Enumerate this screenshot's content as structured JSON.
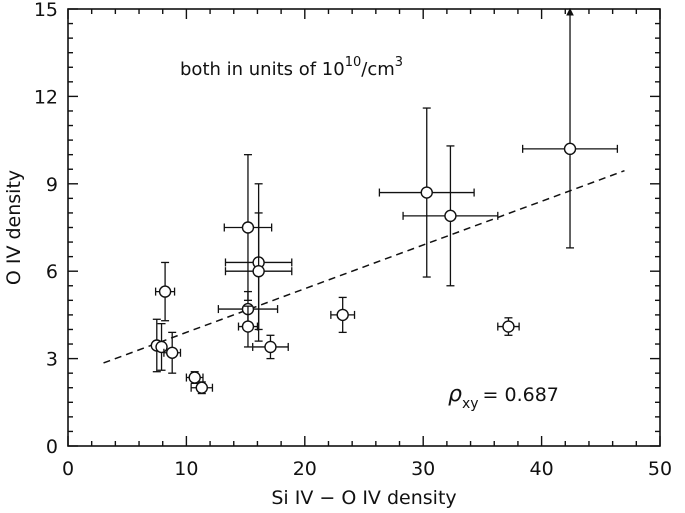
{
  "chart_data": {
    "type": "scatter",
    "xlabel": "Si IV − O IV density",
    "ylabel": "O IV density",
    "xlim": [
      0,
      50
    ],
    "ylim": [
      0,
      15
    ],
    "xticks": [
      0,
      10,
      20,
      30,
      40,
      50
    ],
    "yticks": [
      0,
      3,
      6,
      9,
      12,
      15
    ],
    "xtick_labels": [
      "0",
      "10",
      "20",
      "30",
      "40",
      "50"
    ],
    "ytick_labels": [
      "0",
      "3",
      "6",
      "9",
      "12",
      "15"
    ],
    "grid": false,
    "annotation": {
      "prefix": "both in units of 10",
      "exp1": "10",
      "mid": "/cm",
      "exp2": "3"
    },
    "correlation": {
      "symbol": "ρ",
      "subscript": "xy",
      "text": "= 0.687",
      "value": 0.687
    },
    "fit_line": {
      "x": [
        3,
        47
      ],
      "y": [
        2.85,
        9.45
      ],
      "style": "dashed"
    },
    "points": [
      {
        "x": 7.5,
        "y": 3.45,
        "xerr": 0.3,
        "yerr": 0.9
      },
      {
        "x": 7.9,
        "y": 3.4,
        "xerr": 0.3,
        "yerr": 0.8
      },
      {
        "x": 8.2,
        "y": 5.3,
        "xerr": 0.8,
        "yerr": 1.0
      },
      {
        "x": 8.8,
        "y": 3.2,
        "xerr": 0.7,
        "yerr": 0.7
      },
      {
        "x": 10.7,
        "y": 2.35,
        "xerr": 0.7,
        "yerr": 0.2
      },
      {
        "x": 11.3,
        "y": 2.0,
        "xerr": 0.9,
        "yerr": 0.2
      },
      {
        "x": 15.2,
        "y": 7.5,
        "xerr": 2.0,
        "yerr": 2.5
      },
      {
        "x": 15.2,
        "y": 4.7,
        "xerr": 2.5,
        "yerr": 0.6
      },
      {
        "x": 15.2,
        "y": 4.1,
        "xerr": 0.8,
        "yerr": 0.7
      },
      {
        "x": 16.1,
        "y": 6.3,
        "xerr": 2.8,
        "yerr": 2.7
      },
      {
        "x": 16.1,
        "y": 6.0,
        "xerr": 2.8,
        "yerr": 2.0
      },
      {
        "x": 17.1,
        "y": 3.4,
        "xerr": 1.5,
        "yerr": 0.4
      },
      {
        "x": 23.2,
        "y": 4.5,
        "xerr": 1.0,
        "yerr": 0.6
      },
      {
        "x": 30.3,
        "y": 8.7,
        "xerr": 4.0,
        "yerr": 2.9
      },
      {
        "x": 32.3,
        "y": 7.9,
        "xerr": 4.0,
        "yerr": 2.4
      },
      {
        "x": 37.2,
        "y": 4.1,
        "xerr": 0.9,
        "yerr": 0.3
      },
      {
        "x": 42.4,
        "y": 10.2,
        "xerr": 4.0,
        "yerr_low": 3.4,
        "yerr_high": 4.8,
        "upper_arrow": true
      }
    ]
  }
}
